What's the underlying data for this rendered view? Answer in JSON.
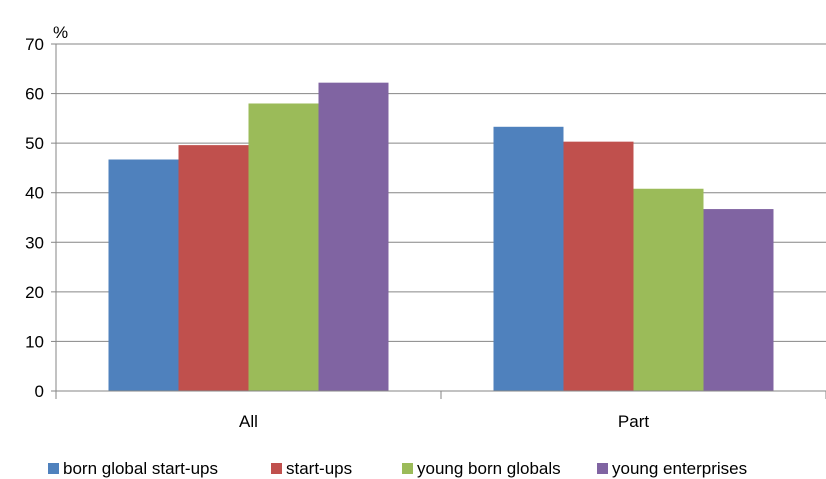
{
  "chart_data": {
    "type": "bar",
    "title": "",
    "xlabel": "",
    "ylabel": "%",
    "ylim": [
      0,
      70
    ],
    "yticks": [
      0,
      10,
      20,
      30,
      40,
      50,
      60,
      70
    ],
    "grid": true,
    "legend_position": "bottom",
    "categories": [
      "All",
      "Part"
    ],
    "series": [
      {
        "name": "born global start-ups",
        "color": "#4f81bd",
        "values": [
          46.7,
          53.3
        ]
      },
      {
        "name": "start-ups",
        "color": "#c0504d",
        "values": [
          49.6,
          50.3
        ]
      },
      {
        "name": "young born globals",
        "color": "#9bbb59",
        "values": [
          58.0,
          40.8
        ]
      },
      {
        "name": "young enterprises",
        "color": "#8064a2",
        "values": [
          62.2,
          36.7
        ]
      }
    ]
  }
}
